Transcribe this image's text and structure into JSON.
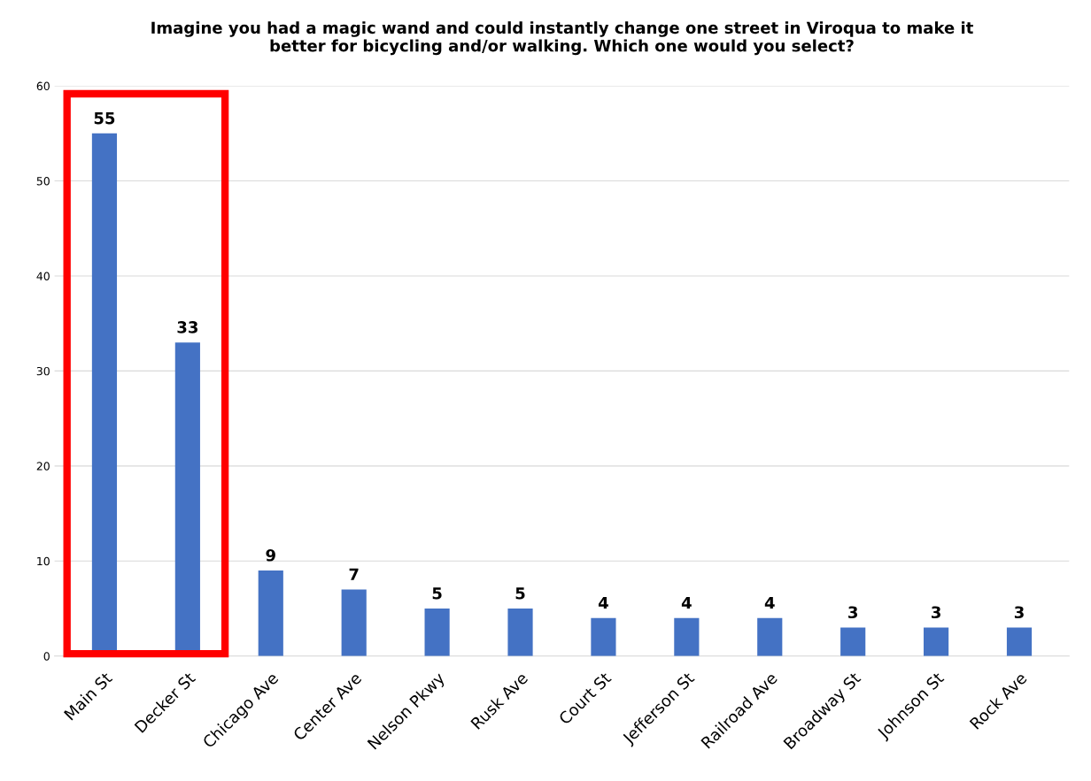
{
  "chart_data": {
    "type": "bar",
    "title": "Imagine you had a magic wand and could instantly change one street in Viroqua to make it\nbetter for bicycling and/or walking. Which one would you select?",
    "categories": [
      "Main St",
      "Decker St",
      "Chicago Ave",
      "Center Ave",
      "Nelson Pkwy",
      "Rusk Ave",
      "Court St",
      "Jefferson St",
      "Railroad Ave",
      "Broadway St",
      "Johnson St",
      "Rock Ave"
    ],
    "values": [
      55,
      33,
      9,
      7,
      5,
      5,
      4,
      4,
      4,
      3,
      3,
      3
    ],
    "color": "#4472c4",
    "ylim": [
      0,
      60
    ],
    "yticks": [
      0,
      10,
      20,
      30,
      40,
      50,
      60
    ],
    "grid": "y",
    "data_labels": true
  }
}
